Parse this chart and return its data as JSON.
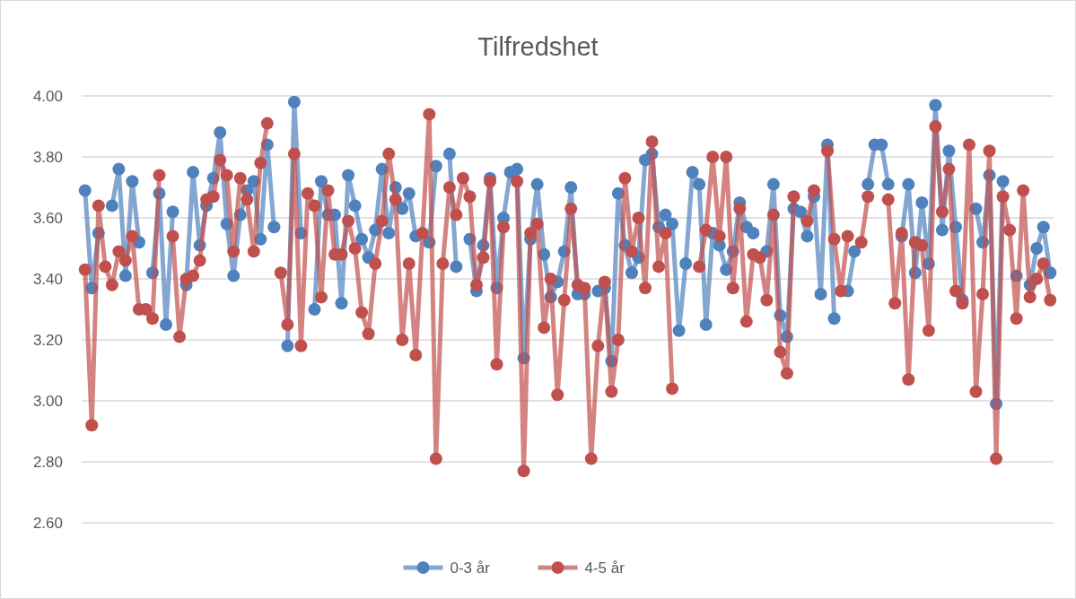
{
  "chart_data": {
    "type": "line",
    "title": "Tilfredshet",
    "categories": [
      null,
      null,
      null,
      null,
      null,
      null,
      null,
      null,
      null,
      null,
      null,
      null,
      null,
      null,
      null,
      null,
      null,
      null,
      null,
      null,
      null,
      null,
      null,
      null,
      null,
      null,
      null,
      null,
      null,
      null,
      null,
      null,
      null,
      null,
      null,
      null,
      null,
      null,
      null,
      null,
      null,
      null,
      null,
      null,
      null,
      null,
      null,
      null,
      null,
      null,
      null,
      null,
      null,
      null,
      null,
      null,
      null,
      null,
      null,
      null,
      null,
      null,
      null,
      null,
      null,
      null,
      null,
      null,
      null,
      null,
      null,
      null,
      null,
      null,
      null,
      null,
      null,
      null,
      null,
      null,
      null,
      null,
      null,
      null,
      null,
      null,
      null,
      null,
      null,
      null,
      null,
      null,
      null,
      null,
      null,
      null,
      null,
      null,
      null,
      null,
      null,
      null,
      null,
      null,
      null,
      null,
      null,
      null,
      null,
      null,
      null,
      null,
      null,
      null,
      null,
      null,
      null,
      null,
      null,
      null,
      null,
      null,
      null,
      null,
      null,
      null,
      null,
      null,
      null,
      null,
      null,
      null,
      null,
      null,
      null,
      null,
      null,
      null,
      null,
      null,
      null,
      null,
      null,
      null
    ],
    "series": [
      {
        "name": "0-3 år",
        "color": "#4f81bd",
        "values": [
          3.69,
          3.37,
          3.55,
          null,
          3.64,
          3.76,
          3.41,
          3.72,
          3.52,
          null,
          3.42,
          3.68,
          3.25,
          3.62,
          null,
          3.38,
          3.75,
          3.51,
          3.64,
          3.73,
          3.88,
          3.58,
          3.41,
          3.61,
          3.69,
          3.72,
          3.53,
          3.84,
          3.57,
          null,
          3.18,
          3.98,
          3.55,
          null,
          3.3,
          3.72,
          3.61,
          3.61,
          3.32,
          3.74,
          3.64,
          3.53,
          3.47,
          3.56,
          3.76,
          3.55,
          3.7,
          3.63,
          3.68,
          3.54,
          null,
          3.52,
          3.77,
          null,
          3.81,
          3.44,
          null,
          3.53,
          3.36,
          3.51,
          3.73,
          3.37,
          3.6,
          3.75,
          3.76,
          3.14,
          3.53,
          3.71,
          3.48,
          3.34,
          3.39,
          3.49,
          3.7,
          3.35,
          3.35,
          null,
          3.36,
          3.37,
          3.13,
          3.68,
          3.51,
          3.42,
          3.47,
          3.79,
          3.81,
          3.57,
          3.61,
          3.58,
          3.23,
          3.45,
          3.75,
          3.71,
          3.25,
          3.55,
          3.51,
          3.43,
          3.49,
          3.65,
          3.57,
          3.55,
          null,
          3.49,
          3.71,
          3.28,
          3.21,
          3.63,
          3.62,
          3.54,
          3.67,
          3.35,
          3.84,
          3.27,
          null,
          3.36,
          3.49,
          null,
          3.71,
          3.84,
          3.84,
          3.71,
          null,
          3.54,
          3.71,
          3.42,
          3.65,
          3.45,
          3.97,
          3.56,
          3.82,
          3.57,
          3.33,
          null,
          3.63,
          3.52,
          3.74,
          2.99,
          3.72,
          null,
          3.41,
          null,
          3.38,
          3.5,
          3.57,
          3.42
        ]
      },
      {
        "name": "4-5 år",
        "color": "#c0504d",
        "values": [
          3.43,
          2.92,
          3.64,
          3.44,
          3.38,
          3.49,
          3.46,
          3.54,
          3.3,
          3.3,
          3.27,
          3.74,
          null,
          3.54,
          3.21,
          3.4,
          3.41,
          3.46,
          3.66,
          3.67,
          3.79,
          3.74,
          3.49,
          3.73,
          3.66,
          3.49,
          3.78,
          3.91,
          null,
          3.42,
          3.25,
          3.81,
          3.18,
          3.68,
          3.64,
          3.34,
          3.69,
          3.48,
          3.48,
          3.59,
          3.5,
          3.29,
          3.22,
          3.45,
          3.59,
          3.81,
          3.66,
          3.2,
          3.45,
          3.15,
          3.55,
          3.94,
          2.81,
          3.45,
          3.7,
          3.61,
          3.73,
          3.67,
          3.38,
          3.47,
          3.72,
          3.12,
          3.57,
          null,
          3.72,
          2.77,
          3.55,
          3.58,
          3.24,
          3.4,
          3.02,
          3.33,
          3.63,
          3.38,
          3.37,
          2.81,
          3.18,
          3.39,
          3.03,
          3.2,
          3.73,
          3.49,
          3.6,
          3.37,
          3.85,
          3.44,
          3.55,
          3.04,
          null,
          null,
          null,
          3.44,
          3.56,
          3.8,
          3.54,
          3.8,
          3.37,
          3.63,
          3.26,
          3.48,
          3.47,
          3.33,
          3.61,
          3.16,
          3.09,
          3.67,
          null,
          3.59,
          3.69,
          null,
          3.82,
          3.53,
          3.36,
          3.54,
          null,
          3.52,
          3.67,
          null,
          null,
          3.66,
          3.32,
          3.55,
          3.07,
          3.52,
          3.51,
          3.23,
          3.9,
          3.62,
          3.76,
          3.36,
          3.32,
          3.84,
          3.03,
          3.35,
          3.82,
          2.81,
          3.67,
          3.56,
          3.27,
          3.69,
          3.34,
          3.4,
          3.45,
          3.33
        ]
      }
    ],
    "ylim": [
      2.6,
      4.0
    ],
    "yticks": [
      {
        "value": 2.6,
        "label": "2.60"
      },
      {
        "value": 2.8,
        "label": "2.80"
      },
      {
        "value": 3.0,
        "label": "3.00"
      },
      {
        "value": 3.2,
        "label": "3.20"
      },
      {
        "value": 3.4,
        "label": "3.40"
      },
      {
        "value": 3.6,
        "label": "3.60"
      },
      {
        "value": 3.8,
        "label": "3.80"
      },
      {
        "value": 4.0,
        "label": "4.00"
      }
    ],
    "grid": "y",
    "legend": "bottom",
    "marker": "circle",
    "line_style": "solid"
  }
}
